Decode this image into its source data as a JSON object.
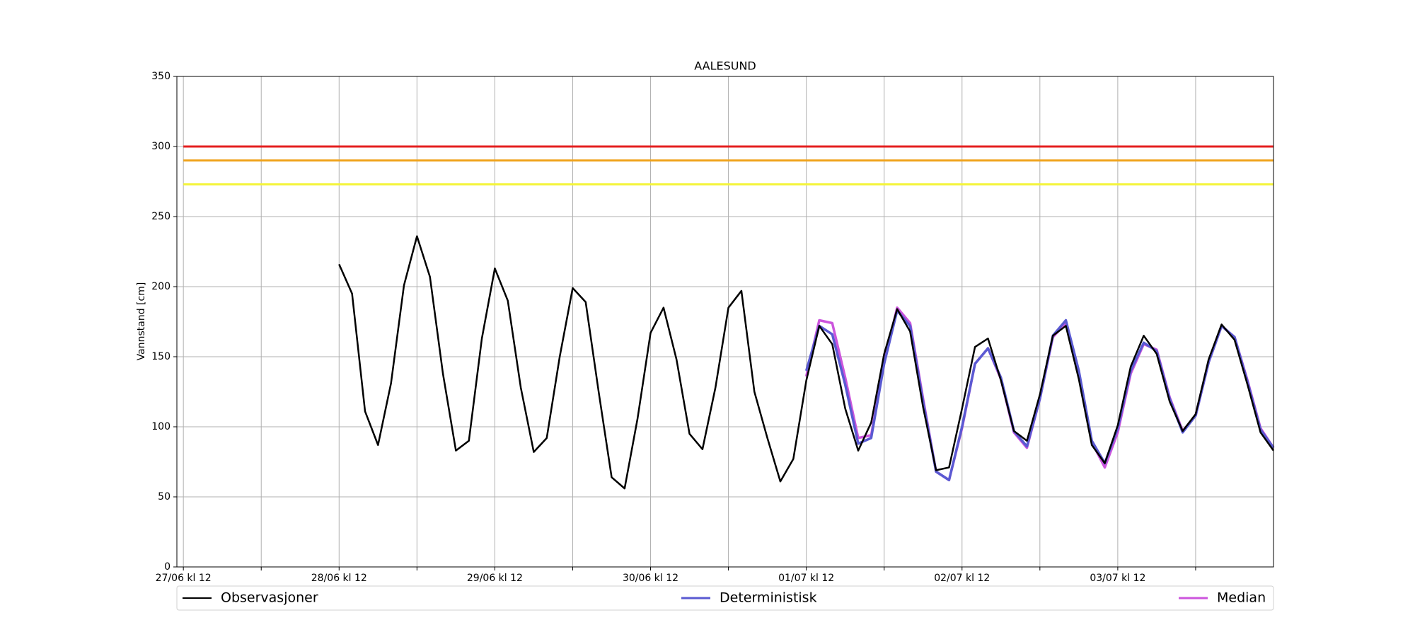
{
  "chart_data": {
    "type": "line",
    "title": "AALESUND",
    "y_label": "Vannstand [cm]",
    "xlim": [
      -1,
      168
    ],
    "xticks": [
      {
        "value": 0,
        "label": "27/06 kl 12"
      },
      {
        "value": 12,
        "label": null
      },
      {
        "value": 24,
        "label": "28/06 kl 12"
      },
      {
        "value": 36,
        "label": null
      },
      {
        "value": 48,
        "label": "29/06 kl 12"
      },
      {
        "value": 60,
        "label": null
      },
      {
        "value": 72,
        "label": "30/06 kl 12"
      },
      {
        "value": 84,
        "label": null
      },
      {
        "value": 96,
        "label": "01/07 kl 12"
      },
      {
        "value": 108,
        "label": null
      },
      {
        "value": 120,
        "label": "02/07 kl 12"
      },
      {
        "value": 132,
        "label": null
      },
      {
        "value": 144,
        "label": "03/07 kl 12"
      },
      {
        "value": 156,
        "label": null
      }
    ],
    "ylim": [
      0,
      350
    ],
    "yticks": [
      0,
      50,
      100,
      150,
      200,
      250,
      300,
      350
    ],
    "grid": true,
    "legend": "below",
    "thresholds": [
      {
        "value": 300,
        "color": "#e41f1f"
      },
      {
        "value": 290,
        "color": "#f0a41e"
      },
      {
        "value": 273,
        "color": "#f4f43a"
      }
    ],
    "series": [
      {
        "name": "Observasjoner",
        "color": "#000000",
        "x": [
          24,
          26,
          28,
          30,
          32,
          34,
          36,
          38,
          40,
          42,
          44,
          46,
          48,
          50,
          52,
          54,
          56,
          58,
          60,
          62,
          64,
          66,
          68,
          70,
          72,
          74,
          76,
          78,
          80,
          82,
          84,
          86,
          88,
          90,
          92,
          94,
          96,
          98,
          100,
          102,
          104,
          106,
          108,
          110,
          112,
          114,
          116,
          118,
          120,
          122,
          124,
          126,
          128,
          130,
          132,
          134,
          136,
          138,
          140,
          142,
          144,
          146,
          148,
          150,
          152,
          154,
          156,
          158,
          160,
          162,
          164,
          166,
          168
        ],
        "values": [
          216,
          195,
          111,
          87,
          131,
          201,
          236,
          207,
          138,
          83,
          90,
          163,
          213,
          190,
          128,
          82,
          92,
          150,
          199,
          189,
          125,
          64,
          56,
          106,
          167,
          185,
          148,
          95,
          84,
          128,
          185,
          197,
          125,
          92,
          61,
          77,
          133,
          172,
          159,
          113,
          83,
          103,
          152,
          184,
          168,
          114,
          69,
          71,
          113,
          157,
          163,
          133,
          97,
          90,
          123,
          165,
          172,
          134,
          87,
          74,
          101,
          143,
          165,
          152,
          118,
          97,
          109,
          148,
          173,
          162,
          130,
          96,
          83
        ]
      },
      {
        "name": "Deterministisk",
        "color": "#5a5ad2",
        "x": [
          96,
          98,
          100,
          102,
          104,
          106,
          108,
          110,
          112,
          114,
          116,
          118,
          120,
          122,
          124,
          126,
          128,
          130,
          132,
          134,
          136,
          138,
          140,
          142,
          144,
          146,
          148,
          150,
          152,
          154,
          156,
          158,
          160,
          162,
          164,
          166,
          168
        ],
        "values": [
          140,
          172,
          166,
          130,
          88,
          92,
          145,
          183,
          172,
          118,
          68,
          62,
          100,
          145,
          156,
          135,
          97,
          86,
          120,
          165,
          176,
          140,
          90,
          74,
          99,
          140,
          160,
          154,
          120,
          96,
          108,
          146,
          172,
          164,
          132,
          98,
          85
        ]
      },
      {
        "name": "Median",
        "color": "#cc55dd",
        "x": [
          96,
          98,
          100,
          102,
          104,
          106,
          108,
          110,
          112,
          114,
          116,
          118,
          120,
          122,
          124,
          126,
          128,
          130,
          132,
          134,
          136,
          138,
          140,
          142,
          144,
          146,
          148,
          150,
          152,
          154,
          156,
          158,
          160,
          162,
          164,
          166,
          168
        ],
        "values": [
          136,
          176,
          174,
          135,
          92,
          94,
          146,
          185,
          174,
          120,
          68,
          62,
          99,
          145,
          156,
          134,
          96,
          85,
          120,
          164,
          174,
          139,
          89,
          71,
          96,
          138,
          159,
          155,
          121,
          97,
          108,
          146,
          172,
          164,
          133,
          99,
          85
        ]
      }
    ]
  }
}
